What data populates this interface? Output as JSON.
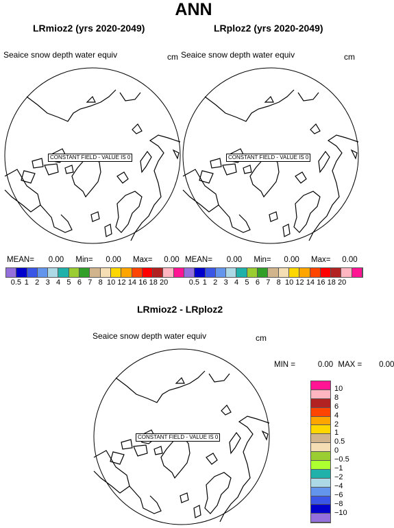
{
  "title": "ANN",
  "panels": [
    {
      "title": "LRmioz2 (yrs 2020-2049)",
      "variable": "Seaice snow depth water equiv",
      "units": "cm",
      "message": "CONSTANT FIELD - VALUE IS  0",
      "stats": {
        "mean_label": "MEAN=",
        "mean": "0.00",
        "min_label": "Min=",
        "min": "0.00",
        "max_label": "Max=",
        "max": "0.00"
      }
    },
    {
      "title": "LRploz2 (yrs 2020-2049)",
      "variable": "Seaice snow depth water equiv",
      "units": "cm",
      "message": "CONSTANT FIELD - VALUE IS  0",
      "stats": {
        "mean_label": "MEAN=",
        "mean": "0.00",
        "min_label": "Min=",
        "min": "0.00",
        "max_label": "Max=",
        "max": "0.00"
      }
    },
    {
      "title": "LRmioz2 - LRploz2",
      "variable": "Seaice snow depth water equiv",
      "units": "cm",
      "message": "CONSTANT FIELD - VALUE IS  0",
      "stats": {
        "min_label": "MIN =",
        "min": "0.00",
        "max_label": "MAX =",
        "max": "0.00"
      }
    }
  ],
  "colorbar_top": {
    "colors": [
      "#9370db",
      "#0000cd",
      "#3a56e6",
      "#6495ed",
      "#add8e6",
      "#20b2aa",
      "#9acd32",
      "#32a028",
      "#d2b48c",
      "#f5deb3",
      "#ffd700",
      "#ffa500",
      "#ff4500",
      "#ff0000",
      "#b22222",
      "#ffb6c1",
      "#ff1493"
    ],
    "labels": [
      "0.5",
      "1",
      "2",
      "3",
      "4",
      "5",
      "6",
      "7",
      "8",
      "10",
      "12",
      "14",
      "16",
      "18",
      "20"
    ]
  },
  "colorbar_diff": {
    "colors": [
      "#ff1493",
      "#ffb6c1",
      "#b22222",
      "#ff4500",
      "#ffa500",
      "#ffd700",
      "#d2b48c",
      "#f5deb3",
      "#9acd32",
      "#adff2f",
      "#20b2aa",
      "#add8e6",
      "#6495ed",
      "#3a56e6",
      "#0000cd",
      "#9370db"
    ],
    "labels": [
      "10",
      "8",
      "6",
      "4",
      "2",
      "1",
      "0.5",
      "0",
      "−0.5",
      "−1",
      "−2",
      "−4",
      "−6",
      "−8",
      "−10"
    ]
  }
}
